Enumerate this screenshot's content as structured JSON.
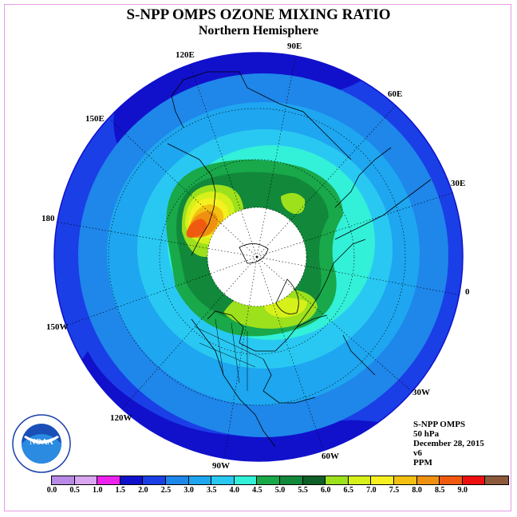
{
  "title": "S-NPP OMPS OZONE MIXING RATIO",
  "subtitle": "Northern Hemisphere",
  "longitude_labels": [
    "90E",
    "60E",
    "30E",
    "0",
    "30W",
    "60W",
    "90W",
    "120W",
    "150W",
    "180",
    "150E",
    "120E"
  ],
  "info": {
    "instrument": "S-NPP OMPS",
    "level": "50 hPa",
    "date": "December 28, 2015",
    "version": "v6",
    "units": "PPM"
  },
  "logo": {
    "text": "NOAA",
    "ring_text_top": "NATIONAL OCEANIC AND ATMOSPHERIC ADMINISTRATION",
    "ring_text_bottom": "U.S. DEPARTMENT OF COMMERCE"
  },
  "colorbar": {
    "ticks": [
      "0.0",
      "0.5",
      "1.0",
      "1.5",
      "2.0",
      "2.5",
      "3.0",
      "3.5",
      "4.0",
      "4.5",
      "5.0",
      "5.5",
      "6.0",
      "6.5",
      "7.0",
      "7.5",
      "8.0",
      "8.5",
      "9.0"
    ],
    "colors": [
      "#b88ae6",
      "#d9a6ef",
      "#ee22ee",
      "#1111cc",
      "#1a3fe6",
      "#1f86ea",
      "#1ea6f0",
      "#29c8f2",
      "#33f0d8",
      "#19a84a",
      "#11883a",
      "#0f5f28",
      "#9de01c",
      "#d6f01a",
      "#f6f020",
      "#f2c010",
      "#f09010",
      "#f05a10",
      "#ee1010",
      "#8c5a3a"
    ]
  },
  "colors": {
    "frame": "#e39be3",
    "polar_night": "#ffffff"
  }
}
